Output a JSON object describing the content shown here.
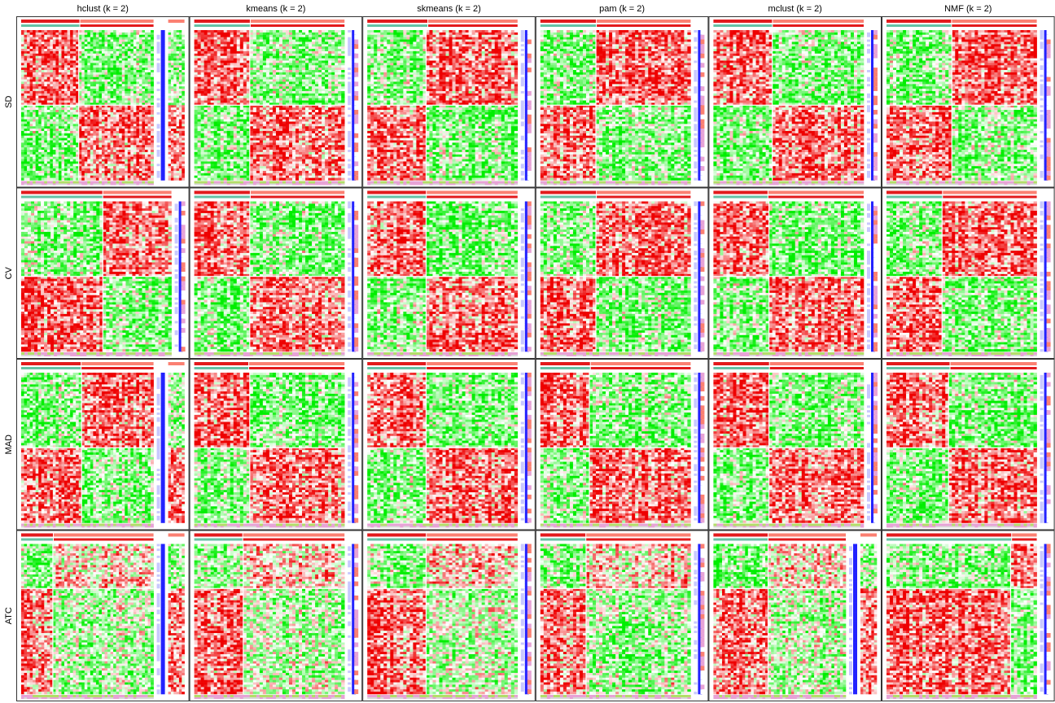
{
  "chart_data": {
    "type": "heatmap",
    "title": "",
    "layout": "grid of consensus-partition heatmaps (rows = top-value methods, columns = partitioning methods)",
    "column_titles": [
      "hclust (k = 2)",
      "kmeans (k = 2)",
      "skmeans (k = 2)",
      "pam (k = 2)",
      "mclust (k = 2)",
      "NMF (k = 2)"
    ],
    "row_labels": [
      "SD",
      "CV",
      "MAD",
      "ATC"
    ],
    "color_scale": {
      "low": "#00ee00",
      "mid": "#ffffff",
      "high": "#ee0000"
    },
    "annotation_colors": {
      "class_bar_1": "#e31a1c",
      "class_bar_2": "#fb8072",
      "class_top": "#66c2a5",
      "class_bottom_a": "#b3de69",
      "class_bottom_b": "#e7a3d6",
      "km_bar": "#2222ff",
      "km_bar_light": "#c8c8ff"
    },
    "panels": [
      {
        "row": "SD",
        "method": "hclust",
        "sample_split": 0.44,
        "gene_split": 0.5,
        "block_pattern": "TL-high",
        "second_split": true
      },
      {
        "row": "SD",
        "method": "kmeans",
        "sample_split": 0.37,
        "gene_split": 0.5,
        "block_pattern": "TL-high",
        "second_split": false
      },
      {
        "row": "SD",
        "method": "skmeans",
        "sample_split": 0.4,
        "gene_split": 0.5,
        "block_pattern": "TR-high",
        "second_split": false
      },
      {
        "row": "SD",
        "method": "pam",
        "sample_split": 0.37,
        "gene_split": 0.5,
        "block_pattern": "TR-high",
        "second_split": false
      },
      {
        "row": "SD",
        "method": "mclust",
        "sample_split": 0.39,
        "gene_split": 0.5,
        "block_pattern": "TL-high",
        "second_split": false
      },
      {
        "row": "SD",
        "method": "NMF",
        "sample_split": 0.43,
        "gene_split": 0.5,
        "block_pattern": "TR-high",
        "second_split": false
      },
      {
        "row": "CV",
        "method": "hclust",
        "sample_split": 0.54,
        "gene_split": 0.5,
        "block_pattern": "TR-high",
        "second_split": false
      },
      {
        "row": "CV",
        "method": "kmeans",
        "sample_split": 0.37,
        "gene_split": 0.5,
        "block_pattern": "TL-high",
        "second_split": false
      },
      {
        "row": "CV",
        "method": "skmeans",
        "sample_split": 0.39,
        "gene_split": 0.5,
        "block_pattern": "TL-high",
        "second_split": false
      },
      {
        "row": "CV",
        "method": "pam",
        "sample_split": 0.37,
        "gene_split": 0.5,
        "block_pattern": "TR-high",
        "second_split": false
      },
      {
        "row": "CV",
        "method": "mclust",
        "sample_split": 0.36,
        "gene_split": 0.5,
        "block_pattern": "TL-high",
        "second_split": false
      },
      {
        "row": "CV",
        "method": "NMF",
        "sample_split": 0.37,
        "gene_split": 0.5,
        "block_pattern": "TR-high",
        "second_split": false
      },
      {
        "row": "MAD",
        "method": "hclust",
        "sample_split": 0.45,
        "gene_split": 0.5,
        "block_pattern": "TR-high",
        "second_split": true
      },
      {
        "row": "MAD",
        "method": "kmeans",
        "sample_split": 0.36,
        "gene_split": 0.5,
        "block_pattern": "TL-high",
        "second_split": false
      },
      {
        "row": "MAD",
        "method": "skmeans",
        "sample_split": 0.39,
        "gene_split": 0.5,
        "block_pattern": "TL-high",
        "second_split": false
      },
      {
        "row": "MAD",
        "method": "pam",
        "sample_split": 0.33,
        "gene_split": 0.5,
        "block_pattern": "TL-high",
        "second_split": false
      },
      {
        "row": "MAD",
        "method": "mclust",
        "sample_split": 0.37,
        "gene_split": 0.5,
        "block_pattern": "TL-high",
        "second_split": false
      },
      {
        "row": "MAD",
        "method": "NMF",
        "sample_split": 0.42,
        "gene_split": 0.5,
        "block_pattern": "TL-high",
        "second_split": false
      },
      {
        "row": "ATC",
        "method": "hclust",
        "sample_split": 0.24,
        "gene_split": 0.3,
        "block_pattern": "BL-high",
        "second_split": true
      },
      {
        "row": "ATC",
        "method": "kmeans",
        "sample_split": 0.32,
        "gene_split": 0.3,
        "block_pattern": "BL-high",
        "second_split": false
      },
      {
        "row": "ATC",
        "method": "skmeans",
        "sample_split": 0.39,
        "gene_split": 0.3,
        "block_pattern": "BL-high",
        "second_split": false
      },
      {
        "row": "ATC",
        "method": "pam",
        "sample_split": 0.3,
        "gene_split": 0.3,
        "block_pattern": "BL-high",
        "second_split": false
      },
      {
        "row": "ATC",
        "method": "mclust",
        "sample_split": 0.41,
        "gene_split": 0.3,
        "block_pattern": "BL-high",
        "second_split": true
      },
      {
        "row": "ATC",
        "method": "NMF",
        "sample_split": 0.83,
        "gene_split": 0.3,
        "block_pattern": "TR-high",
        "second_split": false
      }
    ],
    "grid": false,
    "legend": "none"
  }
}
